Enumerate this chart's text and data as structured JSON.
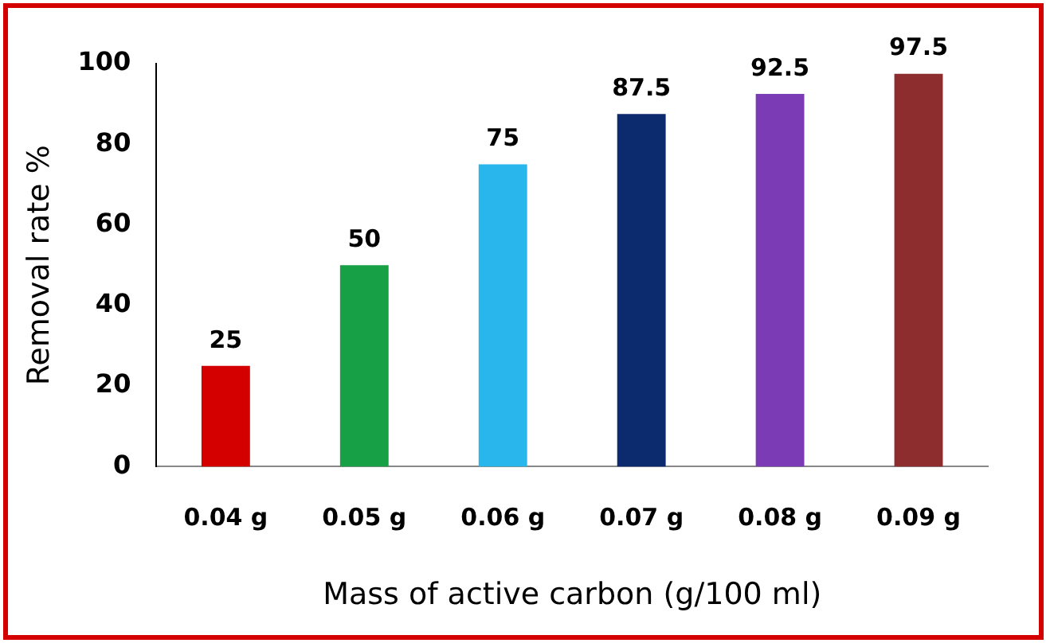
{
  "chart_data": {
    "type": "bar",
    "xlabel": "Mass of active carbon (g/100 ml)",
    "ylabel": "Removal rate %",
    "categories": [
      "0.04 g",
      "0.05 g",
      "0.06 g",
      "0.07 g",
      "0.08 g",
      "0.09 g"
    ],
    "values": [
      25,
      50,
      75,
      87.5,
      92.5,
      97.5
    ],
    "colors": [
      "#d40000",
      "#17a045",
      "#29b6ec",
      "#0c2a6e",
      "#7b3bb5",
      "#8e2d2d"
    ],
    "ylim": [
      0,
      100
    ],
    "yticks": [
      0,
      20,
      40,
      60,
      80,
      100
    ],
    "grid": false,
    "legend": false,
    "data_labels": true
  }
}
